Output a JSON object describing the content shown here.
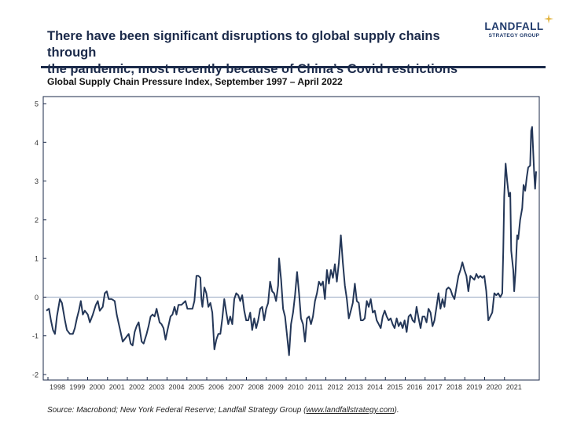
{
  "header": {
    "headline_line1": "There have been significant disruptions to global supply chains through",
    "headline_line2": "the pandemic, most recently because of China’s Covid restrictions"
  },
  "logo": {
    "word": "LANDFALL",
    "sub": "STRATEGY GROUP",
    "star_color": "#e2b23c",
    "color": "#1f3a6b"
  },
  "colors": {
    "line": "#243758",
    "frame": "#1b2a4a",
    "zero_line": "#9aa9c2"
  },
  "chart_data": {
    "type": "line",
    "title": "Global Supply Chain Pressure Index, September 1997 – April 2022",
    "xlabel": "",
    "ylabel": "",
    "xlim": [
      1997.67,
      2022.25
    ],
    "ylim": [
      -2,
      5
    ],
    "yticks": [
      -2,
      -1,
      0,
      1,
      2,
      3,
      4,
      5
    ],
    "xticks": [
      "1998",
      "1999",
      "2000",
      "2001",
      "2002",
      "2003",
      "2004",
      "2005",
      "2006",
      "2007",
      "2008",
      "2009",
      "2010",
      "2011",
      "2012",
      "2013",
      "2014",
      "2015",
      "2016",
      "2017",
      "2018",
      "2019",
      "2020",
      "2021"
    ],
    "grid": false,
    "series": [
      {
        "name": "",
        "points": [
          [
            1997.67,
            -0.35
          ],
          [
            1997.8,
            -0.3
          ],
          [
            1997.9,
            -0.6
          ],
          [
            1998.0,
            -0.85
          ],
          [
            1998.1,
            -0.95
          ],
          [
            1998.2,
            -0.5
          ],
          [
            1998.35,
            -0.05
          ],
          [
            1998.45,
            -0.15
          ],
          [
            1998.6,
            -0.6
          ],
          [
            1998.7,
            -0.85
          ],
          [
            1998.85,
            -0.95
          ],
          [
            1999.0,
            -0.95
          ],
          [
            1999.1,
            -0.8
          ],
          [
            1999.2,
            -0.55
          ],
          [
            1999.3,
            -0.35
          ],
          [
            1999.4,
            -0.1
          ],
          [
            1999.5,
            -0.45
          ],
          [
            1999.6,
            -0.35
          ],
          [
            1999.75,
            -0.45
          ],
          [
            1999.85,
            -0.65
          ],
          [
            2000.0,
            -0.45
          ],
          [
            2000.15,
            -0.2
          ],
          [
            2000.25,
            -0.1
          ],
          [
            2000.35,
            -0.35
          ],
          [
            2000.5,
            -0.25
          ],
          [
            2000.6,
            0.1
          ],
          [
            2000.7,
            0.15
          ],
          [
            2000.8,
            -0.05
          ],
          [
            2000.95,
            -0.05
          ],
          [
            2001.1,
            -0.1
          ],
          [
            2001.2,
            -0.45
          ],
          [
            2001.35,
            -0.8
          ],
          [
            2001.5,
            -1.15
          ],
          [
            2001.65,
            -1.05
          ],
          [
            2001.8,
            -0.95
          ],
          [
            2001.9,
            -1.2
          ],
          [
            2002.0,
            -1.25
          ],
          [
            2002.1,
            -0.9
          ],
          [
            2002.2,
            -0.75
          ],
          [
            2002.3,
            -0.65
          ],
          [
            2002.45,
            -1.15
          ],
          [
            2002.55,
            -1.2
          ],
          [
            2002.7,
            -0.95
          ],
          [
            2002.8,
            -0.75
          ],
          [
            2002.9,
            -0.5
          ],
          [
            2003.0,
            -0.45
          ],
          [
            2003.1,
            -0.5
          ],
          [
            2003.2,
            -0.3
          ],
          [
            2003.35,
            -0.65
          ],
          [
            2003.45,
            -0.7
          ],
          [
            2003.55,
            -0.8
          ],
          [
            2003.65,
            -1.1
          ],
          [
            2003.75,
            -0.85
          ],
          [
            2003.9,
            -0.5
          ],
          [
            2004.0,
            -0.45
          ],
          [
            2004.1,
            -0.25
          ],
          [
            2004.2,
            -0.45
          ],
          [
            2004.3,
            -0.2
          ],
          [
            2004.45,
            -0.2
          ],
          [
            2004.55,
            -0.15
          ],
          [
            2004.65,
            -0.1
          ],
          [
            2004.75,
            -0.3
          ],
          [
            2004.85,
            -0.3
          ],
          [
            2005.0,
            -0.3
          ],
          [
            2005.1,
            -0.1
          ],
          [
            2005.2,
            0.55
          ],
          [
            2005.3,
            0.55
          ],
          [
            2005.4,
            0.5
          ],
          [
            2005.45,
            -0.05
          ],
          [
            2005.5,
            -0.25
          ],
          [
            2005.6,
            0.25
          ],
          [
            2005.7,
            0.1
          ],
          [
            2005.8,
            -0.25
          ],
          [
            2005.9,
            -0.15
          ],
          [
            2006.0,
            -0.4
          ],
          [
            2006.1,
            -1.35
          ],
          [
            2006.2,
            -1.1
          ],
          [
            2006.3,
            -0.95
          ],
          [
            2006.4,
            -0.95
          ],
          [
            2006.5,
            -0.55
          ],
          [
            2006.6,
            -0.05
          ],
          [
            2006.7,
            -0.4
          ],
          [
            2006.8,
            -0.7
          ],
          [
            2006.9,
            -0.5
          ],
          [
            2007.0,
            -0.7
          ],
          [
            2007.1,
            -0.05
          ],
          [
            2007.2,
            0.1
          ],
          [
            2007.3,
            0.05
          ],
          [
            2007.4,
            -0.1
          ],
          [
            2007.5,
            0.05
          ],
          [
            2007.6,
            -0.35
          ],
          [
            2007.7,
            -0.6
          ],
          [
            2007.8,
            -0.6
          ],
          [
            2007.9,
            -0.4
          ],
          [
            2008.0,
            -0.85
          ],
          [
            2008.1,
            -0.55
          ],
          [
            2008.2,
            -0.8
          ],
          [
            2008.3,
            -0.6
          ],
          [
            2008.4,
            -0.3
          ],
          [
            2008.5,
            -0.25
          ],
          [
            2008.6,
            -0.6
          ],
          [
            2008.7,
            -0.3
          ],
          [
            2008.8,
            -0.15
          ],
          [
            2008.9,
            0.4
          ],
          [
            2009.0,
            0.15
          ],
          [
            2009.1,
            0.1
          ],
          [
            2009.2,
            -0.1
          ],
          [
            2009.3,
            0.3
          ],
          [
            2009.35,
            1.0
          ],
          [
            2009.45,
            0.45
          ],
          [
            2009.55,
            -0.3
          ],
          [
            2009.65,
            -0.5
          ],
          [
            2009.75,
            -1.0
          ],
          [
            2009.85,
            -1.5
          ],
          [
            2009.95,
            -0.7
          ],
          [
            2010.05,
            -0.4
          ],
          [
            2010.15,
            0.05
          ],
          [
            2010.25,
            0.65
          ],
          [
            2010.35,
            0.1
          ],
          [
            2010.45,
            -0.55
          ],
          [
            2010.55,
            -0.7
          ],
          [
            2010.65,
            -1.15
          ],
          [
            2010.75,
            -0.55
          ],
          [
            2010.85,
            -0.5
          ],
          [
            2010.95,
            -0.7
          ],
          [
            2011.05,
            -0.5
          ],
          [
            2011.15,
            -0.1
          ],
          [
            2011.25,
            0.1
          ],
          [
            2011.35,
            0.4
          ],
          [
            2011.45,
            0.3
          ],
          [
            2011.55,
            0.4
          ],
          [
            2011.65,
            -0.05
          ],
          [
            2011.75,
            0.7
          ],
          [
            2011.85,
            0.35
          ],
          [
            2011.95,
            0.7
          ],
          [
            2012.05,
            0.5
          ],
          [
            2012.15,
            0.85
          ],
          [
            2012.25,
            0.4
          ],
          [
            2012.35,
            0.9
          ],
          [
            2012.45,
            1.6
          ],
          [
            2012.55,
            0.9
          ],
          [
            2012.65,
            0.3
          ],
          [
            2012.75,
            -0.05
          ],
          [
            2012.85,
            -0.55
          ],
          [
            2012.95,
            -0.35
          ],
          [
            2013.05,
            -0.15
          ],
          [
            2013.15,
            0.35
          ],
          [
            2013.25,
            -0.1
          ],
          [
            2013.35,
            -0.15
          ],
          [
            2013.45,
            -0.6
          ],
          [
            2013.55,
            -0.6
          ],
          [
            2013.65,
            -0.55
          ],
          [
            2013.75,
            -0.1
          ],
          [
            2013.85,
            -0.25
          ],
          [
            2013.95,
            -0.05
          ],
          [
            2014.05,
            -0.4
          ],
          [
            2014.15,
            -0.35
          ],
          [
            2014.25,
            -0.6
          ],
          [
            2014.35,
            -0.7
          ],
          [
            2014.45,
            -0.8
          ],
          [
            2014.55,
            -0.5
          ],
          [
            2014.65,
            -0.35
          ],
          [
            2014.75,
            -0.5
          ],
          [
            2014.85,
            -0.6
          ],
          [
            2014.95,
            -0.55
          ],
          [
            2015.05,
            -0.7
          ],
          [
            2015.15,
            -0.8
          ],
          [
            2015.25,
            -0.55
          ],
          [
            2015.35,
            -0.75
          ],
          [
            2015.45,
            -0.65
          ],
          [
            2015.55,
            -0.8
          ],
          [
            2015.65,
            -0.6
          ],
          [
            2015.75,
            -0.9
          ],
          [
            2015.85,
            -0.5
          ],
          [
            2015.95,
            -0.45
          ],
          [
            2016.05,
            -0.6
          ],
          [
            2016.15,
            -0.65
          ],
          [
            2016.25,
            -0.25
          ],
          [
            2016.35,
            -0.55
          ],
          [
            2016.45,
            -0.8
          ],
          [
            2016.55,
            -0.5
          ],
          [
            2016.65,
            -0.5
          ],
          [
            2016.75,
            -0.65
          ],
          [
            2016.85,
            -0.3
          ],
          [
            2016.95,
            -0.4
          ],
          [
            2017.05,
            -0.75
          ],
          [
            2017.15,
            -0.6
          ],
          [
            2017.25,
            -0.25
          ],
          [
            2017.35,
            0.1
          ],
          [
            2017.45,
            -0.3
          ],
          [
            2017.55,
            -0.05
          ],
          [
            2017.65,
            -0.25
          ],
          [
            2017.75,
            0.2
          ],
          [
            2017.85,
            0.25
          ],
          [
            2017.95,
            0.2
          ],
          [
            2018.05,
            0.05
          ],
          [
            2018.15,
            -0.05
          ],
          [
            2018.25,
            0.25
          ],
          [
            2018.35,
            0.55
          ],
          [
            2018.45,
            0.7
          ],
          [
            2018.55,
            0.9
          ],
          [
            2018.65,
            0.7
          ],
          [
            2018.75,
            0.55
          ],
          [
            2018.85,
            0.15
          ],
          [
            2018.95,
            0.55
          ],
          [
            2019.05,
            0.5
          ],
          [
            2019.15,
            0.45
          ],
          [
            2019.25,
            0.6
          ],
          [
            2019.35,
            0.5
          ],
          [
            2019.45,
            0.55
          ],
          [
            2019.55,
            0.5
          ],
          [
            2019.65,
            0.55
          ],
          [
            2019.75,
            0.15
          ],
          [
            2019.85,
            -0.6
          ],
          [
            2019.95,
            -0.5
          ],
          [
            2020.05,
            -0.4
          ],
          [
            2020.15,
            0.1
          ],
          [
            2020.25,
            0.05
          ],
          [
            2020.35,
            0.1
          ],
          [
            2020.45,
            0.0
          ],
          [
            2020.55,
            0.1
          ],
          [
            2020.6,
            1.2
          ],
          [
            2020.65,
            2.6
          ],
          [
            2020.72,
            3.45
          ],
          [
            2020.8,
            3.0
          ],
          [
            2020.88,
            2.6
          ],
          [
            2020.95,
            2.7
          ],
          [
            2021.0,
            1.2
          ],
          [
            2021.1,
            0.7
          ],
          [
            2021.15,
            0.15
          ],
          [
            2021.22,
            0.7
          ],
          [
            2021.3,
            1.6
          ],
          [
            2021.35,
            1.5
          ],
          [
            2021.45,
            2.0
          ],
          [
            2021.55,
            2.3
          ],
          [
            2021.62,
            2.9
          ],
          [
            2021.7,
            2.75
          ],
          [
            2021.78,
            3.1
          ],
          [
            2021.85,
            3.35
          ],
          [
            2021.95,
            3.4
          ],
          [
            2022.0,
            4.3
          ],
          [
            2022.05,
            4.4
          ],
          [
            2022.1,
            3.8
          ],
          [
            2022.15,
            3.2
          ],
          [
            2022.2,
            2.8
          ],
          [
            2022.25,
            3.25
          ]
        ]
      }
    ]
  },
  "source": {
    "prefix": "Source: Macrobond; New York Federal Reserve; Landfall Strategy Group (",
    "link": "www.landfallstrategy.com",
    "suffix": ")."
  }
}
